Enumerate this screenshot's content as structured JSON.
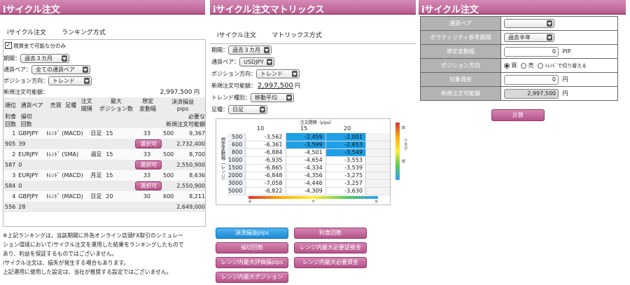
{
  "p1": {
    "title": "iサイクル注文",
    "tabs": [
      "iサイクル注文",
      "ランキング方式"
    ],
    "checkbox_label": "現資金で可能な分のみ",
    "period_label": "期間：",
    "period_value": "過去３カ月",
    "pair_label": "通貨ペア：",
    "pair_value": "全ての通貨ペア",
    "dir_label": "ポジション方向：",
    "dir_value": "トレンド",
    "funds_label": "新規注文可能額：",
    "funds_value": "2,997,500",
    "funds_unit": "円",
    "headers": {
      "rank": "順位",
      "pair": "通貨ペア",
      "trade": "売買",
      "foot": "足種",
      "order": "注文",
      "order2": "間隔",
      "maxpos": "最大",
      "maxpos2": "ポジション数",
      "range": "想定",
      "range2": "変動幅",
      "pl": "決済損益",
      "pl2": "pips",
      "profit": "利食",
      "profit2": "回数",
      "loss": "損切",
      "loss2": "回数",
      "need": "必要な",
      "need2": "新規注文可能額"
    },
    "rows": [
      {
        "rank": "1",
        "pair": "GBPJPY",
        "trade": "ﾄﾚﾝﾄﾞ (MACD)",
        "foot": "日足",
        "interval": "15",
        "maxpos": "33",
        "range": "500",
        "pips": "9,367",
        "profit": "905",
        "loss": "39",
        "need": "2,732,400",
        "btn": "選択可"
      },
      {
        "rank": "2",
        "pair": "EURJPY",
        "trade": "ﾄﾚﾝﾄﾞ (SMA)",
        "foot": "週足",
        "interval": "15",
        "maxpos": "33",
        "range": "500",
        "pips": "8,700",
        "profit": "587",
        "loss": "0",
        "need": "2,550,900",
        "btn": "選択可"
      },
      {
        "rank": "3",
        "pair": "EURJPY",
        "trade": "ﾄﾚﾝﾄﾞ (MACD)",
        "foot": "月足",
        "interval": "15",
        "maxpos": "33",
        "range": "500",
        "pips": "8,636",
        "profit": "584",
        "loss": "0",
        "need": "2,550,900",
        "btn": "選択可"
      },
      {
        "rank": "4",
        "pair": "GBPJPY",
        "trade": "ﾄﾚﾝﾄﾞ (MACD)",
        "foot": "日足",
        "interval": "20",
        "maxpos": "30",
        "range": "600",
        "pips": "8,211",
        "profit": "556",
        "loss": "28",
        "need": "2,649,000",
        "btn": ""
      }
    ],
    "notes": [
      "※上記ランキングは，当該期間に外為オンライン店頭FX取引のシミュレー",
      "ション環境においてiサイクル注文を運用した結果をランキングしたもので",
      "あり、利益を保証するものではございません。",
      "iサイクル注文は、損失が発生する場合もあります。",
      "上記運用に使用した設定は、当社が推奨する設定ではございません。"
    ]
  },
  "p2": {
    "title": "iサイクル注文マトリックス",
    "tabs": [
      "iサイクル注文",
      "マトリックス方式"
    ],
    "period_label": "期間：",
    "period_value": "過去３カ月",
    "pair_label": "通貨ペア：",
    "pair_value": "USDJPY",
    "dir_label": "ポジション方向：",
    "dir_value": "トレンド",
    "funds_label": "新規注文可能額：",
    "funds_value": "2,997,500",
    "funds_unit": "円",
    "trend_label": "トレンド種別：",
    "trend_value": "移動平均",
    "foot_label": "足種：",
    "foot_value": "日足",
    "matrix_caption": "注文間隔（pips）",
    "cols": [
      "10",
      "15",
      "20"
    ],
    "yaxis": "想定変動幅（レンジ）",
    "rows": [
      {
        "r": "500",
        "v": [
          "-3,562",
          "-2,459",
          "-2,001"
        ],
        "h": [
          false,
          true,
          true
        ]
      },
      {
        "r": "600",
        "v": [
          "-6,361",
          "-3,599",
          "-2,653"
        ],
        "h": [
          false,
          true,
          true
        ]
      },
      {
        "r": "800",
        "v": [
          "-6,884",
          "-4,501",
          "-3,549"
        ],
        "h": [
          false,
          false,
          true
        ]
      },
      {
        "r": "1000",
        "v": [
          "-6,935",
          "-4,654",
          "-3,553"
        ],
        "h": [
          false,
          false,
          false
        ]
      },
      {
        "r": "1500",
        "v": [
          "-6,865",
          "-4,334",
          "-3,539"
        ],
        "h": [
          false,
          false,
          false
        ]
      },
      {
        "r": "2000",
        "v": [
          "-6,848",
          "-4,356",
          "-3,275"
        ],
        "h": [
          false,
          false,
          false
        ]
      },
      {
        "r": "3000",
        "v": [
          "-7,058",
          "-4,446",
          "-3,257"
        ],
        "h": [
          false,
          false,
          false
        ]
      },
      {
        "r": "5000",
        "v": [
          "-6,822",
          "-4,309",
          "-3,630"
        ],
        "h": [
          false,
          false,
          false
        ]
      }
    ],
    "risk_hi": "高",
    "risk_label": "リスク",
    "risk_lo": "低",
    "grad_lo": "高",
    "grad_mid": "中",
    "grad_hi": "低",
    "buttons": [
      "決済損益pips",
      "利食回数",
      "損切回数",
      "レンジ内最大必要証拠金",
      "レンジ内最大評価損pips",
      "レンジ内最大必要資金",
      "レンジ内最大ポジション"
    ]
  },
  "p3": {
    "title": "iサイクル注文",
    "pair_label": "通貨ペア",
    "pair_value": "",
    "vol_label": "ボラティリティ参考期間",
    "vol_value": "過去半年",
    "range_label": "想定変動幅",
    "range_value": "0",
    "range_unit": "PIP",
    "dir_label": "ポジション方向",
    "dir_opts": [
      "買",
      "売",
      "ﾄﾚﾝﾄﾞで切り替える"
    ],
    "asset_label": "対象資産",
    "asset_value": "0",
    "asset_unit": "円",
    "funds_label": "新規注文可能額",
    "funds_value": "2,997,500",
    "funds_unit": "円",
    "calc_btn": "計算"
  },
  "colors": {
    "accent": "#b95d93",
    "highlight": "#1ea0e6"
  }
}
